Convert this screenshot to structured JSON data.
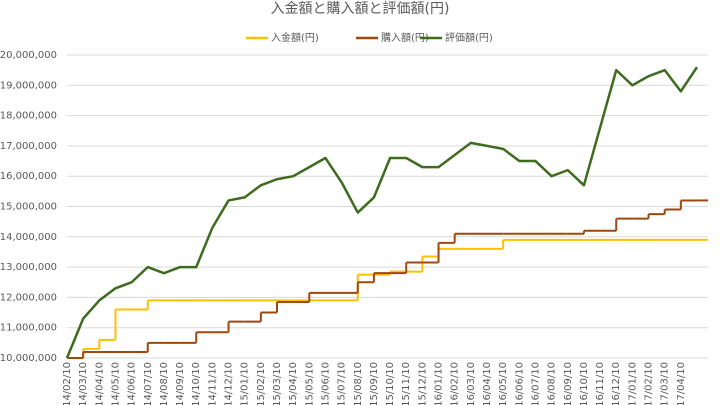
{
  "chart_data": {
    "type": "line",
    "title": "入金額と購入額と評価額(円)",
    "categories": [
      "2014/02/10",
      "2014/03/10",
      "2014/04/10",
      "2014/05/10",
      "2014/06/10",
      "2014/07/10",
      "2014/08/10",
      "2014/09/10",
      "2014/10/10",
      "2014/11/10",
      "2014/12/10",
      "2015/01/10",
      "2015/02/10",
      "2015/03/10",
      "2015/04/10",
      "2015/05/10",
      "2015/06/10",
      "2015/07/10",
      "2015/08/10",
      "2015/09/10",
      "2015/10/10",
      "2015/11/10",
      "2015/12/10",
      "2016/01/10",
      "2016/02/10",
      "2016/03/10",
      "2016/04/10",
      "2016/05/10",
      "2016/06/10",
      "2016/07/10",
      "2016/08/10",
      "2016/09/10",
      "2016/10/10",
      "2016/11/10",
      "2016/12/10",
      "2017/01/10",
      "2017/02/10",
      "2017/03/10",
      "2017/04/10",
      null
    ],
    "series": [
      {
        "name": "入金額(円)",
        "color": "#ffc000",
        "step": true,
        "values": [
          10000000,
          10300000,
          10600000,
          11600000,
          11600000,
          11900000,
          11900000,
          11900000,
          11900000,
          11900000,
          11900000,
          11900000,
          11900000,
          11900000,
          11900000,
          11900000,
          11900000,
          11900000,
          12750000,
          12750000,
          12850000,
          12850000,
          13350000,
          13600000,
          13600000,
          13600000,
          13600000,
          13900000,
          13900000,
          13900000,
          13900000,
          13900000,
          13900000,
          13900000,
          13900000,
          13900000,
          13900000,
          13900000,
          13900000,
          13900000
        ]
      },
      {
        "name": "購入額(円)",
        "color": "#9e480e",
        "step": true,
        "values": [
          10000000,
          10200000,
          10200000,
          10200000,
          10200000,
          10500000,
          10500000,
          10500000,
          10850000,
          10850000,
          11200000,
          11200000,
          11500000,
          11850000,
          11850000,
          12150000,
          12150000,
          12150000,
          12500000,
          12800000,
          12800000,
          13150000,
          13150000,
          13800000,
          14100000,
          14100000,
          14100000,
          14100000,
          14100000,
          14100000,
          14100000,
          14100000,
          14200000,
          14200000,
          14600000,
          14600000,
          14750000,
          14900000,
          15200000,
          15200000
        ]
      },
      {
        "name": "評価額(円)",
        "color": "#3f6b1f",
        "step": false,
        "values": [
          10000000,
          11300000,
          11900000,
          12300000,
          12500000,
          13000000,
          12800000,
          13000000,
          13000000,
          14300000,
          15200000,
          15300000,
          15700000,
          15900000,
          16000000,
          16300000,
          16600000,
          15800000,
          14800000,
          15300000,
          16600000,
          16600000,
          16300000,
          16300000,
          16700000,
          17100000,
          17000000,
          16900000,
          16500000,
          16500000,
          16000000,
          16200000,
          15700000,
          17600000,
          19500000,
          19000000,
          19300000,
          19500000,
          18800000,
          19600000
        ]
      }
    ],
    "ylim": [
      10000000,
      20000000
    ],
    "yticks": [
      {
        "value": 10000000,
        "label": "¥10,000,000"
      },
      {
        "value": 11000000,
        "label": "¥11,000,000"
      },
      {
        "value": 12000000,
        "label": "¥12,000,000"
      },
      {
        "value": 13000000,
        "label": "¥13,000,000"
      },
      {
        "value": 14000000,
        "label": "¥14,000,000"
      },
      {
        "value": 15000000,
        "label": "¥15,000,000"
      },
      {
        "value": 16000000,
        "label": "¥16,000,000"
      },
      {
        "value": 17000000,
        "label": "¥17,000,000"
      },
      {
        "value": 18000000,
        "label": "¥18,000,000"
      },
      {
        "value": 19000000,
        "label": "¥19,000,000"
      },
      {
        "value": 20000000,
        "label": "¥20,000,000"
      }
    ],
    "grid": true,
    "legend": "top"
  }
}
